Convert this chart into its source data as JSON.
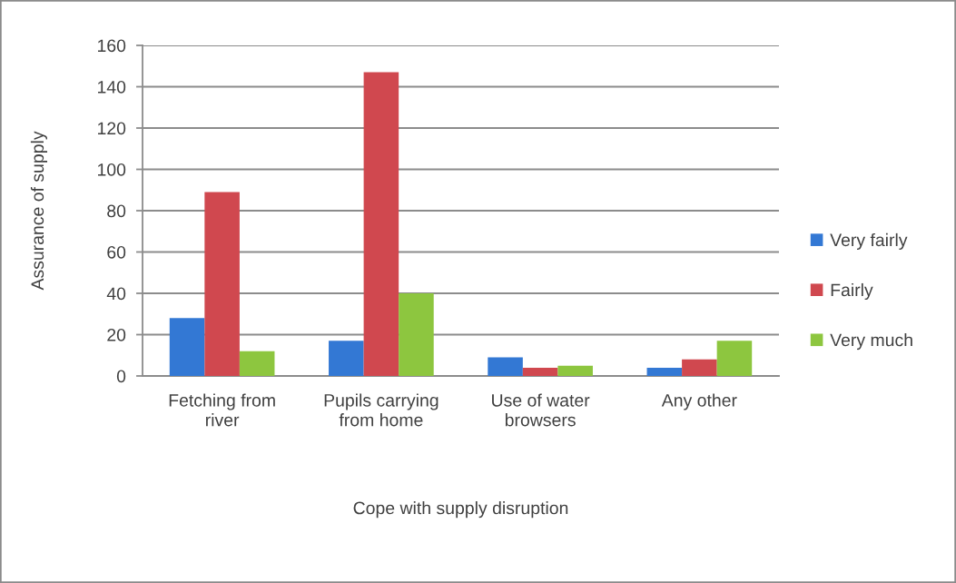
{
  "chart_data": {
    "type": "bar",
    "categories": [
      "Fetching from river",
      "Pupils carrying from home",
      "Use of water browsers",
      "Any other"
    ],
    "series": [
      {
        "name": "Very fairly",
        "color": "#3378d4",
        "values": [
          28,
          17,
          9,
          4
        ]
      },
      {
        "name": "Fairly",
        "color": "#d0484f",
        "values": [
          89,
          147,
          4,
          8
        ]
      },
      {
        "name": "Very much",
        "color": "#8dc63f",
        "values": [
          12,
          40,
          5,
          17
        ]
      }
    ],
    "xlabel": "Cope with supply disruption",
    "ylabel": "Assurance of supply",
    "ylim": [
      0,
      160
    ],
    "yticks": [
      0,
      20,
      40,
      60,
      80,
      100,
      120,
      140,
      160
    ],
    "grid": "y",
    "legend": "right"
  }
}
